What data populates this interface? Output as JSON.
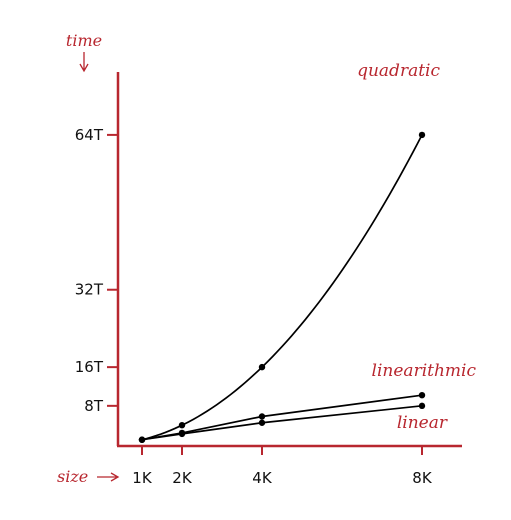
{
  "chart_data": {
    "type": "line",
    "title": "",
    "xlabel": "size",
    "ylabel": "time",
    "x_ticks": [
      {
        "value": 1,
        "label": "1K"
      },
      {
        "value": 2,
        "label": "2K"
      },
      {
        "value": 4,
        "label": "4K"
      },
      {
        "value": 8,
        "label": "8K"
      }
    ],
    "y_ticks": [
      {
        "value": 8,
        "label": "8T"
      },
      {
        "value": 16,
        "label": "16T"
      },
      {
        "value": 32,
        "label": "32T"
      },
      {
        "value": 64,
        "label": "64T"
      }
    ],
    "xlim": [
      0.4,
      9.0
    ],
    "ylim": [
      -0.3,
      77
    ],
    "grid": false,
    "legend": "none",
    "series": [
      {
        "name": "quadratic",
        "x": [
          1,
          2,
          4,
          8
        ],
        "y": [
          1,
          4,
          16,
          64
        ],
        "curve": "quadratic"
      },
      {
        "name": "linearithmic",
        "x": [
          1,
          2,
          4,
          8
        ],
        "y": [
          1,
          2.4,
          5.8,
          10.2
        ],
        "curve": "linear"
      },
      {
        "name": "linear",
        "x": [
          1,
          2,
          4,
          8
        ],
        "y": [
          1,
          2.2,
          4.5,
          8
        ],
        "curve": "linear"
      }
    ],
    "colors": {
      "axis": "#b8272f",
      "line": "#000000",
      "label": "#b8272f"
    }
  }
}
